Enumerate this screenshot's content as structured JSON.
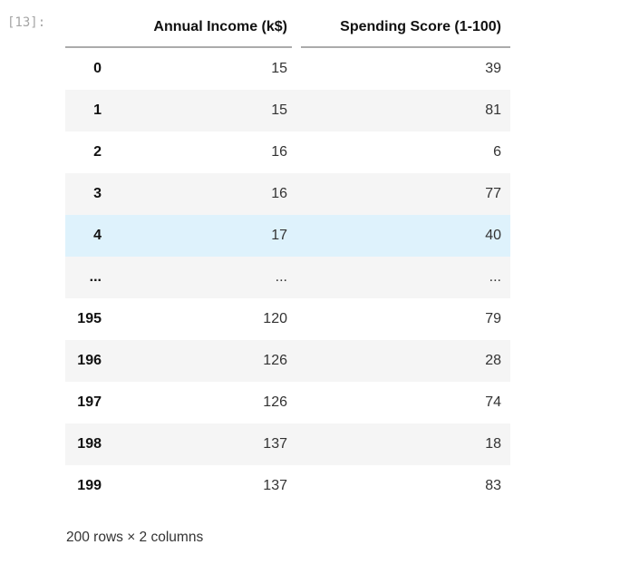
{
  "cell": {
    "execution_count": "[13]:"
  },
  "table": {
    "index_header": "",
    "columns": [
      "Annual Income (k$)",
      "Spending Score (1-100)"
    ],
    "rows": [
      {
        "index": "0",
        "values": [
          "15",
          "39"
        ],
        "highlighted": false
      },
      {
        "index": "1",
        "values": [
          "15",
          "81"
        ],
        "highlighted": false
      },
      {
        "index": "2",
        "values": [
          "16",
          "6"
        ],
        "highlighted": false
      },
      {
        "index": "3",
        "values": [
          "16",
          "77"
        ],
        "highlighted": false
      },
      {
        "index": "4",
        "values": [
          "17",
          "40"
        ],
        "highlighted": true
      },
      {
        "index": "...",
        "values": [
          "...",
          "..."
        ],
        "highlighted": false
      },
      {
        "index": "195",
        "values": [
          "120",
          "79"
        ],
        "highlighted": false
      },
      {
        "index": "196",
        "values": [
          "126",
          "28"
        ],
        "highlighted": false
      },
      {
        "index": "197",
        "values": [
          "126",
          "74"
        ],
        "highlighted": false
      },
      {
        "index": "198",
        "values": [
          "137",
          "18"
        ],
        "highlighted": false
      },
      {
        "index": "199",
        "values": [
          "137",
          "83"
        ],
        "highlighted": false
      }
    ],
    "summary": "200 rows × 2 columns"
  },
  "colors": {
    "stripe": "#f5f5f5",
    "hover": "#def2fc",
    "header_border": "#ababab",
    "prompt": "#a5a5a5"
  }
}
